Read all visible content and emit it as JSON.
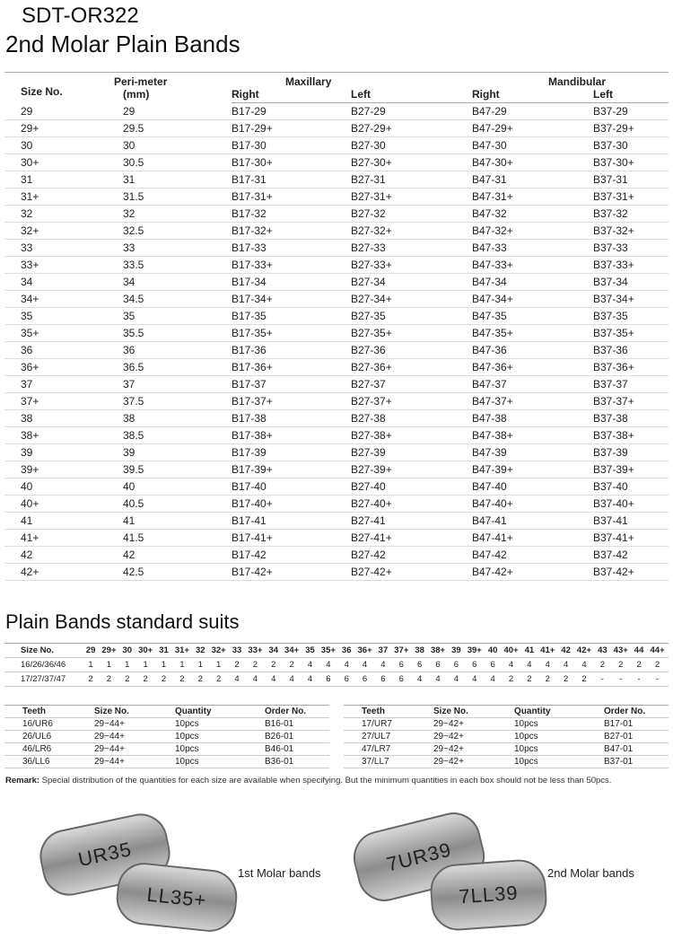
{
  "title": "SDT-OR322",
  "subtitle": "2nd Molar Plain Bands",
  "main_table": {
    "headers": {
      "size": "Size No.",
      "peri": "Peri-meter",
      "peri_unit": "(mm)",
      "maxillary": "Maxillary",
      "mandibular": "Mandibular",
      "right": "Right",
      "left": "Left"
    },
    "rows": [
      [
        "29",
        "29",
        "B17-29",
        "B27-29",
        "B47-29",
        "B37-29"
      ],
      [
        "29+",
        "29.5",
        "B17-29+",
        "B27-29+",
        "B47-29+",
        "B37-29+"
      ],
      [
        "30",
        "30",
        "B17-30",
        "B27-30",
        "B47-30",
        "B37-30"
      ],
      [
        "30+",
        "30.5",
        "B17-30+",
        "B27-30+",
        "B47-30+",
        "B37-30+"
      ],
      [
        "31",
        "31",
        "B17-31",
        "B27-31",
        "B47-31",
        "B37-31"
      ],
      [
        "31+",
        "31.5",
        "B17-31+",
        "B27-31+",
        "B47-31+",
        "B37-31+"
      ],
      [
        "32",
        "32",
        "B17-32",
        "B27-32",
        "B47-32",
        "B37-32"
      ],
      [
        "32+",
        "32.5",
        "B17-32+",
        "B27-32+",
        "B47-32+",
        "B37-32+"
      ],
      [
        "33",
        "33",
        "B17-33",
        "B27-33",
        "B47-33",
        "B37-33"
      ],
      [
        "33+",
        "33.5",
        "B17-33+",
        "B27-33+",
        "B47-33+",
        "B37-33+"
      ],
      [
        "34",
        "34",
        "B17-34",
        "B27-34",
        "B47-34",
        "B37-34"
      ],
      [
        "34+",
        "34.5",
        "B17-34+",
        "B27-34+",
        "B47-34+",
        "B37-34+"
      ],
      [
        "35",
        "35",
        "B17-35",
        "B27-35",
        "B47-35",
        "B37-35"
      ],
      [
        "35+",
        "35.5",
        "B17-35+",
        "B27-35+",
        "B47-35+",
        "B37-35+"
      ],
      [
        "36",
        "36",
        "B17-36",
        "B27-36",
        "B47-36",
        "B37-36"
      ],
      [
        "36+",
        "36.5",
        "B17-36+",
        "B27-36+",
        "B47-36+",
        "B37-36+"
      ],
      [
        "37",
        "37",
        "B17-37",
        "B27-37",
        "B47-37",
        "B37-37"
      ],
      [
        "37+",
        "37.5",
        "B17-37+",
        "B27-37+",
        "B47-37+",
        "B37-37+"
      ],
      [
        "38",
        "38",
        "B17-38",
        "B27-38",
        "B47-38",
        "B37-38"
      ],
      [
        "38+",
        "38.5",
        "B17-38+",
        "B27-38+",
        "B47-38+",
        "B37-38+"
      ],
      [
        "39",
        "39",
        "B17-39",
        "B27-39",
        "B47-39",
        "B37-39"
      ],
      [
        "39+",
        "39.5",
        "B17-39+",
        "B27-39+",
        "B47-39+",
        "B37-39+"
      ],
      [
        "40",
        "40",
        "B17-40",
        "B27-40",
        "B47-40",
        "B37-40"
      ],
      [
        "40+",
        "40.5",
        "B17-40+",
        "B27-40+",
        "B47-40+",
        "B37-40+"
      ],
      [
        "41",
        "41",
        "B17-41",
        "B27-41",
        "B47-41",
        "B37-41"
      ],
      [
        "41+",
        "41.5",
        "B17-41+",
        "B27-41+",
        "B47-41+",
        "B37-41+"
      ],
      [
        "42",
        "42",
        "B17-42",
        "B27-42",
        "B47-42",
        "B37-42"
      ],
      [
        "42+",
        "42.5",
        "B17-42+",
        "B27-42+",
        "B47-42+",
        "B37-42+"
      ]
    ]
  },
  "suits_title": "Plain Bands standard suits",
  "suits": {
    "header": [
      "Size No.",
      "29",
      "29+",
      "30",
      "30+",
      "31",
      "31+",
      "32",
      "32+",
      "33",
      "33+",
      "34",
      "34+",
      "35",
      "35+",
      "36",
      "36+",
      "37",
      "37+",
      "38",
      "38+",
      "39",
      "39+",
      "40",
      "40+",
      "41",
      "41+",
      "42",
      "42+",
      "43",
      "43+",
      "44",
      "44+"
    ],
    "rows": [
      [
        "16/26/36/46",
        "1",
        "1",
        "1",
        "1",
        "1",
        "1",
        "1",
        "1",
        "2",
        "2",
        "2",
        "2",
        "4",
        "4",
        "4",
        "4",
        "4",
        "6",
        "6",
        "6",
        "6",
        "6",
        "6",
        "4",
        "4",
        "4",
        "4",
        "4",
        "2",
        "2",
        "2",
        "2"
      ],
      [
        "17/27/37/47",
        "2",
        "2",
        "2",
        "2",
        "2",
        "2",
        "2",
        "2",
        "4",
        "4",
        "4",
        "4",
        "4",
        "6",
        "6",
        "6",
        "6",
        "6",
        "4",
        "4",
        "4",
        "4",
        "4",
        "2",
        "2",
        "2",
        "2",
        "2",
        "-",
        "-",
        "-",
        "-"
      ]
    ]
  },
  "kits_left": [
    [
      "Teeth",
      "Size No.",
      "Quantity",
      "Order No."
    ],
    [
      "16/UR6",
      "29~44+",
      "10pcs",
      "B16-01"
    ],
    [
      "26/UL6",
      "29~44+",
      "10pcs",
      "B26-01"
    ],
    [
      "46/LR6",
      "29~44+",
      "10pcs",
      "B46-01"
    ],
    [
      "36/LL6",
      "29~44+",
      "10pcs",
      "B36-01"
    ]
  ],
  "kits_right": [
    [
      "Teeth",
      "Size No.",
      "Quantity",
      "Order No."
    ],
    [
      "17/UR7",
      "29~42+",
      "10pcs",
      "B17-01"
    ],
    [
      "27/UL7",
      "29~42+",
      "10pcs",
      "B27-01"
    ],
    [
      "47/LR7",
      "29~42+",
      "10pcs",
      "B47-01"
    ],
    [
      "37/LL7",
      "29~42+",
      "10pcs",
      "B37-01"
    ]
  ],
  "remark": {
    "label": "Remark:",
    "text": " Special distribution of the quantities for each size are available when specifying. But the minimum quantities in each box should not be less than 50pcs."
  },
  "images": {
    "first": {
      "caption": "1st Molar bands",
      "band1": "UR35",
      "band2": "LL35+"
    },
    "second": {
      "caption": "2nd Molar bands",
      "band1": "7UR39",
      "band2": "7LL39"
    }
  }
}
